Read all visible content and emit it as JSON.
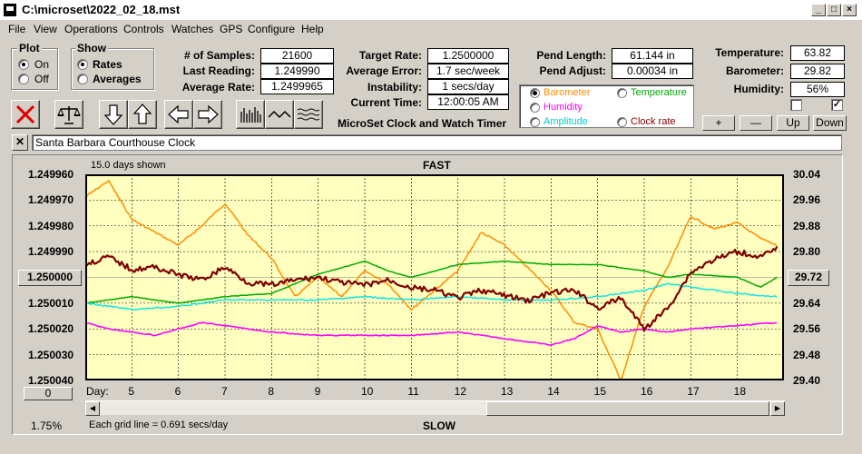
{
  "window": {
    "title": "C:\\microset\\2022_02_18.mst"
  },
  "menu": [
    "File",
    "View",
    "Operations",
    "Controls",
    "Watches",
    "GPS",
    "Configure",
    "Help"
  ],
  "plot_group": {
    "title": "Plot",
    "on": "On",
    "off": "Off",
    "selected": "On"
  },
  "show_group": {
    "title": "Show",
    "rates": "Rates",
    "averages": "Averages",
    "selected": "Rates"
  },
  "stats": {
    "samples_label": "# of Samples:",
    "samples": "21600",
    "last_reading_label": "Last Reading:",
    "last_reading": "1.249990",
    "average_rate_label": "Average Rate:",
    "average_rate": "1.2499965",
    "target_rate_label": "Target Rate:",
    "target_rate": "1.2500000",
    "average_error_label": "Average Error:",
    "average_error": "1.7 sec/week",
    "instability_label": "Instability:",
    "instability": "1 secs/day",
    "current_time_label": "Current Time:",
    "current_time": "12:00:05 AM",
    "pend_length_label": "Pend Length:",
    "pend_length": "61.144 in",
    "pend_adjust_label": "Pend Adjust:",
    "pend_adjust": "0.00034 in",
    "temperature_label": "Temperature:",
    "temperature": "63.82",
    "barometer_label": "Barometer:",
    "barometer": "29.82",
    "humidity_label": "Humidity:",
    "humidity": "56%"
  },
  "app_subtitle": "MicroSet Clock and Watch Timer",
  "legend": {
    "barometer": "Barometer",
    "temperature": "Temperature",
    "humidity": "Humidity",
    "amplitude": "Amplitude",
    "clock_rate": "Clock rate",
    "selected": "Barometer"
  },
  "right_buttons": {
    "plus": "+",
    "minus": "—",
    "up": "Up",
    "down": "Down"
  },
  "clock_name": "Santa Barbara Courthouse Clock",
  "colors": {
    "plot_bg": "#ffffc0",
    "rate": "#800000",
    "barometer": "#ff8c00",
    "temperature": "#00aa00",
    "humidity": "#ff00ff",
    "amplitude": "#00e5e5",
    "grid": "#000000"
  },
  "graph": {
    "days_shown": "15.0 days shown",
    "fast": "FAST",
    "slow": "SLOW",
    "day_label": "Day:",
    "grid_note": "Each grid line = 0.691 secs/day",
    "center_value": "1.250000",
    "right_value": "29.72",
    "zero_button": "0",
    "percent": "1.75%",
    "left_ticks": [
      "1.249960",
      "1.249970",
      "1.249980",
      "1.249990",
      "1.250000",
      "1.250010",
      "1.250020",
      "1.250030",
      "1.250040"
    ],
    "right_ticks": [
      "30.04",
      "29.96",
      "29.88",
      "29.80",
      "29.72",
      "29.64",
      "29.56",
      "29.48",
      "29.40"
    ],
    "days": [
      "5",
      "6",
      "7",
      "8",
      "9",
      "10",
      "11",
      "12",
      "13",
      "14",
      "15",
      "16",
      "17",
      "18"
    ]
  },
  "chart_data": {
    "type": "line",
    "xlabel": "Day:",
    "x_range_days": [
      4.0,
      19.0
    ],
    "left_axis": {
      "min": 1.24996,
      "max": 1.25004,
      "inverted": true
    },
    "right_axis": {
      "min": 29.4,
      "max": 30.04
    },
    "series": [
      {
        "name": "Clock rate",
        "axis": "left",
        "x": [
          4.0,
          4.5,
          5.0,
          5.5,
          6.0,
          6.5,
          7.0,
          7.5,
          8.0,
          8.5,
          9.0,
          9.5,
          10.0,
          10.5,
          11.0,
          11.5,
          12.0,
          12.5,
          13.0,
          13.5,
          14.0,
          14.5,
          15.0,
          15.5,
          16.0,
          16.5,
          17.0,
          17.5,
          18.0,
          18.5,
          18.85
        ],
        "y": [
          1.249995,
          1.249992,
          1.249997,
          1.249996,
          1.249999,
          1.250001,
          1.249996,
          1.250002,
          1.250003,
          1.250001,
          1.25,
          1.250002,
          1.250003,
          1.250001,
          1.250004,
          1.250005,
          1.250008,
          1.250005,
          1.250007,
          1.250009,
          1.250006,
          1.250005,
          1.250012,
          1.250008,
          1.25002,
          1.250012,
          1.249998,
          1.249993,
          1.24999,
          1.249992,
          1.249989
        ]
      },
      {
        "name": "Barometer",
        "axis": "right",
        "x": [
          4.0,
          4.5,
          5.0,
          5.5,
          6.0,
          6.5,
          7.0,
          7.5,
          8.0,
          8.5,
          9.0,
          9.5,
          10.0,
          10.5,
          11.0,
          11.5,
          12.0,
          12.5,
          13.0,
          13.5,
          14.0,
          14.5,
          15.0,
          15.5,
          16.0,
          16.5,
          17.0,
          17.5,
          18.0,
          18.5,
          18.85
        ],
        "y": [
          29.97,
          30.02,
          29.9,
          29.86,
          29.82,
          29.88,
          29.95,
          29.85,
          29.78,
          29.66,
          29.72,
          29.66,
          29.74,
          29.7,
          29.62,
          29.68,
          29.74,
          29.86,
          29.82,
          29.75,
          29.68,
          29.58,
          29.56,
          29.4,
          29.63,
          29.75,
          29.91,
          29.87,
          29.89,
          29.84,
          29.82
        ]
      },
      {
        "name": "Temperature",
        "axis": "right",
        "x": [
          4.0,
          5.0,
          6.0,
          7.0,
          8.0,
          9.0,
          10.0,
          10.5,
          11.0,
          12.0,
          13.0,
          14.0,
          15.0,
          15.5,
          16.0,
          16.5,
          17.0,
          18.0,
          18.5,
          18.85
        ],
        "y": [
          29.64,
          29.66,
          29.64,
          29.66,
          29.67,
          29.73,
          29.77,
          29.74,
          29.72,
          29.76,
          29.77,
          29.76,
          29.76,
          29.75,
          29.74,
          29.72,
          29.73,
          29.72,
          29.69,
          29.72
        ]
      },
      {
        "name": "Amplitude",
        "axis": "right",
        "x": [
          4.0,
          5.0,
          6.0,
          7.0,
          8.0,
          9.0,
          10.0,
          11.0,
          12.0,
          13.0,
          14.0,
          15.0,
          16.0,
          16.5,
          17.0,
          18.0,
          18.85
        ],
        "y": [
          29.64,
          29.62,
          29.63,
          29.65,
          29.65,
          29.65,
          29.66,
          29.65,
          29.66,
          29.65,
          29.65,
          29.66,
          29.68,
          29.7,
          29.69,
          29.67,
          29.66
        ]
      },
      {
        "name": "Humidity",
        "axis": "right",
        "x": [
          4.0,
          4.5,
          5.0,
          5.5,
          6.0,
          6.5,
          7.0,
          7.5,
          8.0,
          9.0,
          10.0,
          11.0,
          12.0,
          13.0,
          14.0,
          14.5,
          15.0,
          15.5,
          16.0,
          16.5,
          17.0,
          18.0,
          18.85
        ],
        "y": [
          29.58,
          29.56,
          29.55,
          29.54,
          29.56,
          29.58,
          29.57,
          29.56,
          29.55,
          29.54,
          29.54,
          29.54,
          29.55,
          29.53,
          29.51,
          29.53,
          29.57,
          29.55,
          29.56,
          29.55,
          29.56,
          29.57,
          29.58
        ]
      }
    ]
  }
}
